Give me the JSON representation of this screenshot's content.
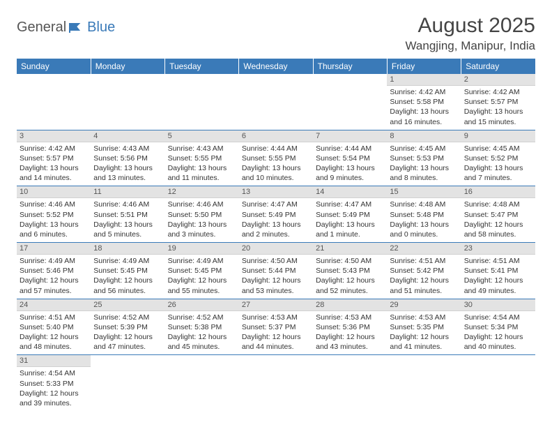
{
  "logo": {
    "text_general": "General",
    "text_blue": "Blue"
  },
  "title": "August 2025",
  "location": "Wangjing, Manipur, India",
  "colors": {
    "header_bg": "#3a7ab8",
    "header_fg": "#ffffff",
    "daynum_bg": "#e3e3e3",
    "border": "#3a7ab8",
    "text": "#333333"
  },
  "day_headers": [
    "Sunday",
    "Monday",
    "Tuesday",
    "Wednesday",
    "Thursday",
    "Friday",
    "Saturday"
  ],
  "weeks": [
    [
      null,
      null,
      null,
      null,
      null,
      {
        "n": "1",
        "sr": "Sunrise: 4:42 AM",
        "ss": "Sunset: 5:58 PM",
        "dl": "Daylight: 13 hours and 16 minutes."
      },
      {
        "n": "2",
        "sr": "Sunrise: 4:42 AM",
        "ss": "Sunset: 5:57 PM",
        "dl": "Daylight: 13 hours and 15 minutes."
      }
    ],
    [
      {
        "n": "3",
        "sr": "Sunrise: 4:42 AM",
        "ss": "Sunset: 5:57 PM",
        "dl": "Daylight: 13 hours and 14 minutes."
      },
      {
        "n": "4",
        "sr": "Sunrise: 4:43 AM",
        "ss": "Sunset: 5:56 PM",
        "dl": "Daylight: 13 hours and 13 minutes."
      },
      {
        "n": "5",
        "sr": "Sunrise: 4:43 AM",
        "ss": "Sunset: 5:55 PM",
        "dl": "Daylight: 13 hours and 11 minutes."
      },
      {
        "n": "6",
        "sr": "Sunrise: 4:44 AM",
        "ss": "Sunset: 5:55 PM",
        "dl": "Daylight: 13 hours and 10 minutes."
      },
      {
        "n": "7",
        "sr": "Sunrise: 4:44 AM",
        "ss": "Sunset: 5:54 PM",
        "dl": "Daylight: 13 hours and 9 minutes."
      },
      {
        "n": "8",
        "sr": "Sunrise: 4:45 AM",
        "ss": "Sunset: 5:53 PM",
        "dl": "Daylight: 13 hours and 8 minutes."
      },
      {
        "n": "9",
        "sr": "Sunrise: 4:45 AM",
        "ss": "Sunset: 5:52 PM",
        "dl": "Daylight: 13 hours and 7 minutes."
      }
    ],
    [
      {
        "n": "10",
        "sr": "Sunrise: 4:46 AM",
        "ss": "Sunset: 5:52 PM",
        "dl": "Daylight: 13 hours and 6 minutes."
      },
      {
        "n": "11",
        "sr": "Sunrise: 4:46 AM",
        "ss": "Sunset: 5:51 PM",
        "dl": "Daylight: 13 hours and 5 minutes."
      },
      {
        "n": "12",
        "sr": "Sunrise: 4:46 AM",
        "ss": "Sunset: 5:50 PM",
        "dl": "Daylight: 13 hours and 3 minutes."
      },
      {
        "n": "13",
        "sr": "Sunrise: 4:47 AM",
        "ss": "Sunset: 5:49 PM",
        "dl": "Daylight: 13 hours and 2 minutes."
      },
      {
        "n": "14",
        "sr": "Sunrise: 4:47 AM",
        "ss": "Sunset: 5:49 PM",
        "dl": "Daylight: 13 hours and 1 minute."
      },
      {
        "n": "15",
        "sr": "Sunrise: 4:48 AM",
        "ss": "Sunset: 5:48 PM",
        "dl": "Daylight: 13 hours and 0 minutes."
      },
      {
        "n": "16",
        "sr": "Sunrise: 4:48 AM",
        "ss": "Sunset: 5:47 PM",
        "dl": "Daylight: 12 hours and 58 minutes."
      }
    ],
    [
      {
        "n": "17",
        "sr": "Sunrise: 4:49 AM",
        "ss": "Sunset: 5:46 PM",
        "dl": "Daylight: 12 hours and 57 minutes."
      },
      {
        "n": "18",
        "sr": "Sunrise: 4:49 AM",
        "ss": "Sunset: 5:45 PM",
        "dl": "Daylight: 12 hours and 56 minutes."
      },
      {
        "n": "19",
        "sr": "Sunrise: 4:49 AM",
        "ss": "Sunset: 5:45 PM",
        "dl": "Daylight: 12 hours and 55 minutes."
      },
      {
        "n": "20",
        "sr": "Sunrise: 4:50 AM",
        "ss": "Sunset: 5:44 PM",
        "dl": "Daylight: 12 hours and 53 minutes."
      },
      {
        "n": "21",
        "sr": "Sunrise: 4:50 AM",
        "ss": "Sunset: 5:43 PM",
        "dl": "Daylight: 12 hours and 52 minutes."
      },
      {
        "n": "22",
        "sr": "Sunrise: 4:51 AM",
        "ss": "Sunset: 5:42 PM",
        "dl": "Daylight: 12 hours and 51 minutes."
      },
      {
        "n": "23",
        "sr": "Sunrise: 4:51 AM",
        "ss": "Sunset: 5:41 PM",
        "dl": "Daylight: 12 hours and 49 minutes."
      }
    ],
    [
      {
        "n": "24",
        "sr": "Sunrise: 4:51 AM",
        "ss": "Sunset: 5:40 PM",
        "dl": "Daylight: 12 hours and 48 minutes."
      },
      {
        "n": "25",
        "sr": "Sunrise: 4:52 AM",
        "ss": "Sunset: 5:39 PM",
        "dl": "Daylight: 12 hours and 47 minutes."
      },
      {
        "n": "26",
        "sr": "Sunrise: 4:52 AM",
        "ss": "Sunset: 5:38 PM",
        "dl": "Daylight: 12 hours and 45 minutes."
      },
      {
        "n": "27",
        "sr": "Sunrise: 4:53 AM",
        "ss": "Sunset: 5:37 PM",
        "dl": "Daylight: 12 hours and 44 minutes."
      },
      {
        "n": "28",
        "sr": "Sunrise: 4:53 AM",
        "ss": "Sunset: 5:36 PM",
        "dl": "Daylight: 12 hours and 43 minutes."
      },
      {
        "n": "29",
        "sr": "Sunrise: 4:53 AM",
        "ss": "Sunset: 5:35 PM",
        "dl": "Daylight: 12 hours and 41 minutes."
      },
      {
        "n": "30",
        "sr": "Sunrise: 4:54 AM",
        "ss": "Sunset: 5:34 PM",
        "dl": "Daylight: 12 hours and 40 minutes."
      }
    ],
    [
      {
        "n": "31",
        "sr": "Sunrise: 4:54 AM",
        "ss": "Sunset: 5:33 PM",
        "dl": "Daylight: 12 hours and 39 minutes."
      },
      null,
      null,
      null,
      null,
      null,
      null
    ]
  ]
}
